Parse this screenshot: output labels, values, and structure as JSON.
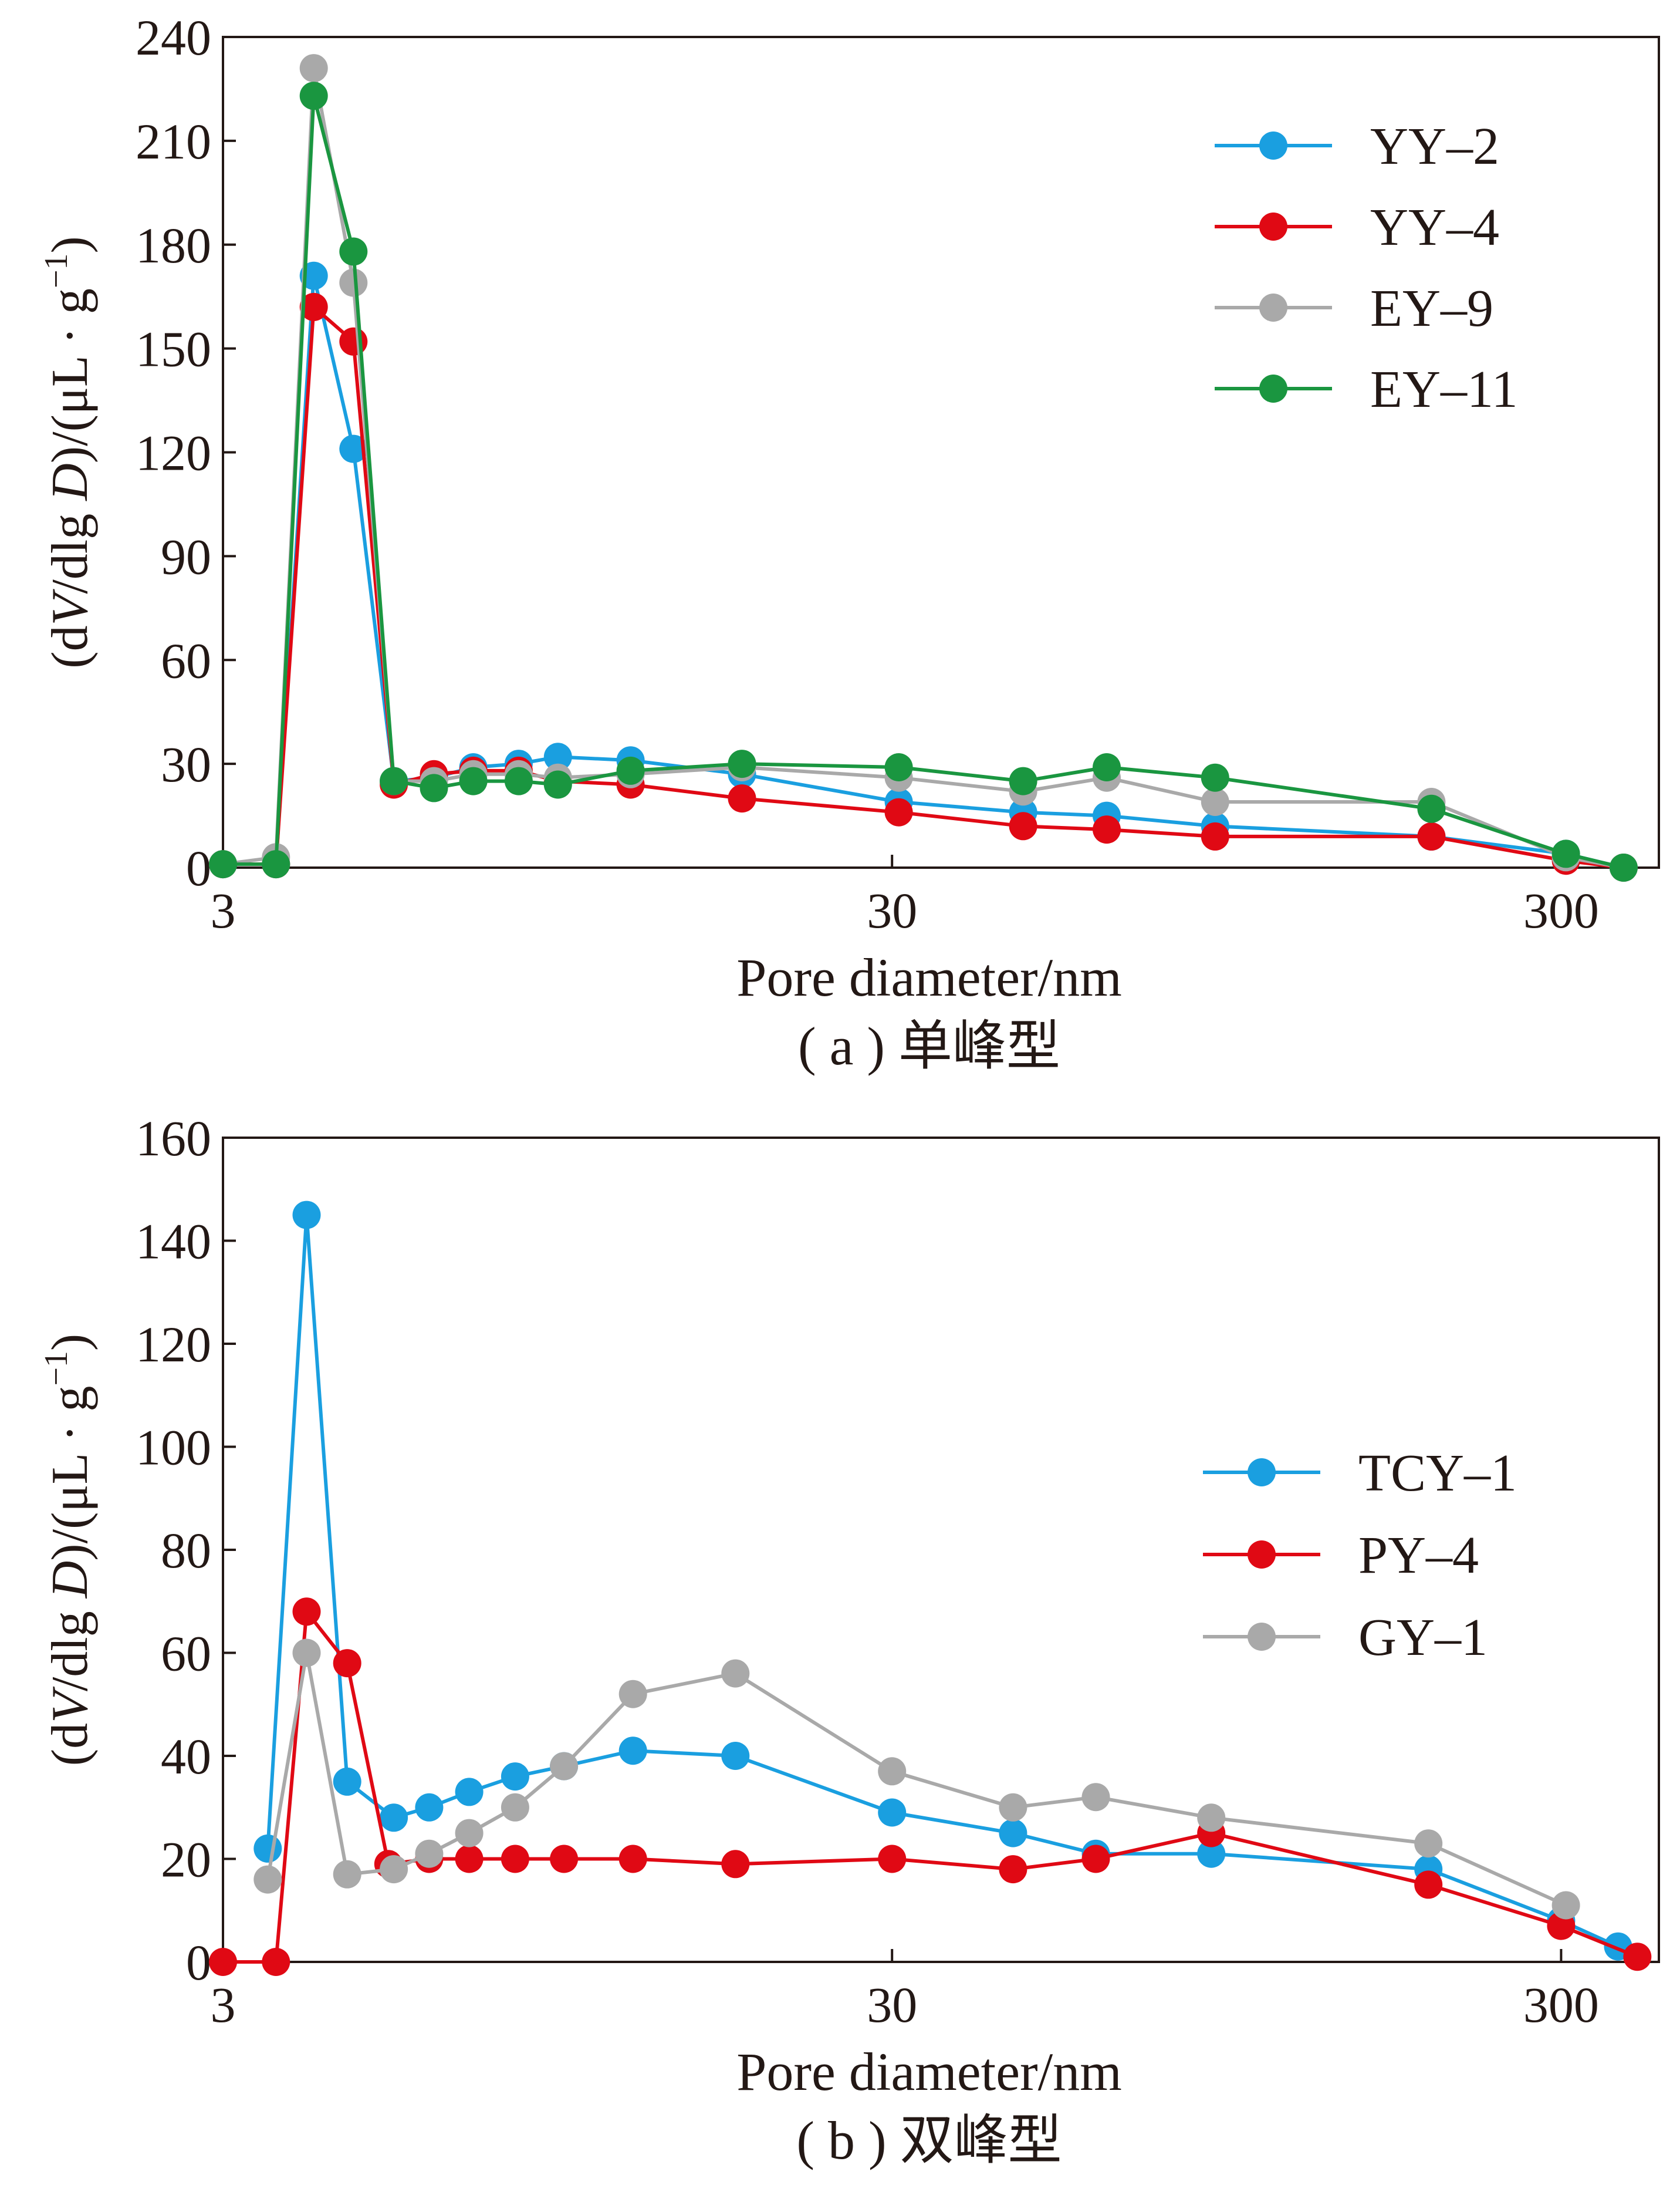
{
  "chart_data": [
    {
      "type": "line",
      "caption": "( a ) 单峰型",
      "xlabel": "Pore diameter/nm",
      "ylabel": "(dV/dlg D)/(μL · g−1)",
      "xscale": "log",
      "xlim": [
        3,
        420
      ],
      "ylim": [
        0,
        240
      ],
      "xticks": [
        3,
        30,
        300
      ],
      "yticks": [
        0,
        30,
        60,
        90,
        120,
        150,
        180,
        210,
        240
      ],
      "grid": false,
      "legend_position": "top-right",
      "series": [
        {
          "name": "YY–2",
          "color": "#1a9fe0",
          "points": [
            [
              3.0,
              1
            ],
            [
              3.6,
              1
            ],
            [
              4.1,
              171
            ],
            [
              4.7,
              121
            ],
            [
              5.4,
              25
            ],
            [
              6.2,
              26
            ],
            [
              7.1,
              29
            ],
            [
              8.3,
              30
            ],
            [
              9.5,
              32
            ],
            [
              12.2,
              31
            ],
            [
              17.9,
              27
            ],
            [
              30.7,
              19
            ],
            [
              47.1,
              16
            ],
            [
              62.8,
              15
            ],
            [
              91.2,
              12
            ],
            [
              192,
              9
            ],
            [
              305,
              4
            ],
            [
              372,
              0
            ]
          ]
        },
        {
          "name": "YY–4",
          "color": "#e00914",
          "points": [
            [
              3.0,
              1
            ],
            [
              3.6,
              1
            ],
            [
              4.1,
              162
            ],
            [
              4.7,
              152
            ],
            [
              5.4,
              24
            ],
            [
              6.2,
              27
            ],
            [
              7.1,
              28
            ],
            [
              8.3,
              28
            ],
            [
              9.5,
              25
            ],
            [
              12.2,
              24
            ],
            [
              17.9,
              20
            ],
            [
              30.7,
              16
            ],
            [
              47.1,
              12
            ],
            [
              62.8,
              11
            ],
            [
              91.2,
              9
            ],
            [
              192,
              9
            ],
            [
              305,
              2
            ],
            [
              372,
              0
            ]
          ]
        },
        {
          "name": "EY–9",
          "color": "#a9a9a9",
          "points": [
            [
              3.0,
              1
            ],
            [
              3.6,
              3
            ],
            [
              4.1,
              231
            ],
            [
              4.7,
              169
            ],
            [
              5.4,
              25
            ],
            [
              6.2,
              25
            ],
            [
              7.1,
              27
            ],
            [
              8.3,
              27
            ],
            [
              9.5,
              26
            ],
            [
              12.2,
              27
            ],
            [
              17.9,
              29
            ],
            [
              30.7,
              26
            ],
            [
              47.1,
              22
            ],
            [
              62.8,
              26
            ],
            [
              91.2,
              19
            ],
            [
              192,
              19
            ],
            [
              305,
              3
            ],
            [
              372,
              0
            ]
          ]
        },
        {
          "name": "EY–11",
          "color": "#1a9640",
          "points": [
            [
              3.0,
              1
            ],
            [
              3.6,
              1
            ],
            [
              4.1,
              223
            ],
            [
              4.7,
              178
            ],
            [
              5.4,
              25
            ],
            [
              6.2,
              23
            ],
            [
              7.1,
              25
            ],
            [
              8.3,
              25
            ],
            [
              9.5,
              24
            ],
            [
              12.2,
              28
            ],
            [
              17.9,
              30
            ],
            [
              30.7,
              29
            ],
            [
              47.1,
              25
            ],
            [
              62.8,
              29
            ],
            [
              91.2,
              26
            ],
            [
              192,
              17
            ],
            [
              305,
              4
            ],
            [
              372,
              0
            ]
          ]
        }
      ]
    },
    {
      "type": "line",
      "caption": "( b ) 双峰型",
      "xlabel": "Pore diameter/nm",
      "ylabel": "(dV/dlg D)/(μL · g−1)",
      "xscale": "log",
      "xlim": [
        3,
        420
      ],
      "ylim": [
        0,
        160
      ],
      "xticks": [
        3,
        30,
        300
      ],
      "yticks": [
        0,
        20,
        40,
        60,
        80,
        100,
        120,
        140,
        160
      ],
      "grid": false,
      "legend_position": "right",
      "series": [
        {
          "name": "TCY–1",
          "color": "#1a9fe0",
          "points": [
            [
              3.5,
              22
            ],
            [
              4.0,
              145
            ],
            [
              4.6,
              35
            ],
            [
              5.4,
              28
            ],
            [
              6.1,
              30
            ],
            [
              7.0,
              33
            ],
            [
              8.2,
              36
            ],
            [
              9.7,
              38
            ],
            [
              12.3,
              41
            ],
            [
              17.5,
              40
            ],
            [
              30.0,
              29
            ],
            [
              45.5,
              25
            ],
            [
              60.5,
              21
            ],
            [
              90.0,
              21
            ],
            [
              190,
              18
            ],
            [
              300,
              8
            ],
            [
              365,
              3
            ]
          ]
        },
        {
          "name": "PY–4",
          "color": "#e00914",
          "points": [
            [
              3.0,
              0
            ],
            [
              3.6,
              0
            ],
            [
              4.0,
              68
            ],
            [
              4.6,
              58
            ],
            [
              5.3,
              19
            ],
            [
              6.1,
              20
            ],
            [
              7.0,
              20
            ],
            [
              8.2,
              20
            ],
            [
              9.7,
              20
            ],
            [
              12.3,
              20
            ],
            [
              17.5,
              19
            ],
            [
              30.0,
              20
            ],
            [
              45.5,
              18
            ],
            [
              60.5,
              20
            ],
            [
              90.0,
              25
            ],
            [
              190,
              15
            ],
            [
              300,
              7
            ],
            [
              390,
              1
            ]
          ]
        },
        {
          "name": "GY–1",
          "color": "#a9a9a9",
          "points": [
            [
              3.5,
              16
            ],
            [
              4.0,
              60
            ],
            [
              4.6,
              17
            ],
            [
              5.4,
              18
            ],
            [
              6.1,
              21
            ],
            [
              7.0,
              25
            ],
            [
              8.2,
              30
            ],
            [
              9.7,
              38
            ],
            [
              12.3,
              52
            ],
            [
              17.5,
              56
            ],
            [
              30.0,
              37
            ],
            [
              45.5,
              30
            ],
            [
              60.5,
              32
            ],
            [
              90.0,
              28
            ],
            [
              190,
              23
            ],
            [
              305,
              11
            ]
          ]
        }
      ]
    }
  ]
}
